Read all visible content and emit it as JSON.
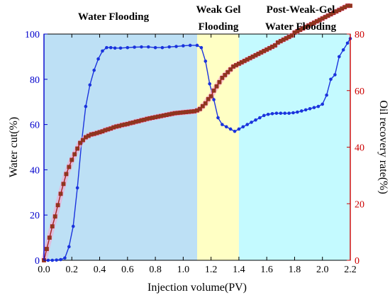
{
  "chart_data": {
    "type": "line",
    "phases": [
      {
        "label": "Water Flooding",
        "lines": [
          "Water Flooding"
        ],
        "x_range": [
          0.0,
          1.1
        ],
        "color": "#bde0f5"
      },
      {
        "label": "Weak Gel Flooding",
        "lines": [
          "Weak Gel",
          "Flooding"
        ],
        "x_range": [
          1.1,
          1.4
        ],
        "color": "#ffffc4"
      },
      {
        "label": "Post-Weak-Gel Water Flooding",
        "lines": [
          "Post-Weak-Gel",
          "Water Flooding"
        ],
        "x_range": [
          1.4,
          2.2
        ],
        "color": "#c4faff"
      }
    ],
    "xlabel": "Injection volume(PV)",
    "ylabel_left": "Water cut(%)",
    "ylabel_right": "Oil recovery rate(%)",
    "xlim": [
      0.0,
      2.2
    ],
    "ylim_left": [
      0,
      100
    ],
    "ylim_right": [
      0,
      80
    ],
    "x_ticks": [
      "0.0",
      "0.2",
      "0.4",
      "0.6",
      "0.8",
      "1.0",
      "1.2",
      "1.4",
      "1.6",
      "1.8",
      "2.0",
      "2.2"
    ],
    "y_left_ticks": [
      "0",
      "20",
      "40",
      "60",
      "80",
      "100"
    ],
    "y_right_ticks": [
      "0",
      "20",
      "40",
      "60",
      "80"
    ],
    "left_color": "#0000cc",
    "right_color": "#cc0000",
    "series": [
      {
        "axis": "left",
        "marker": "circle",
        "color": "#1a33dd",
        "x": [
          0.0,
          0.03,
          0.06,
          0.09,
          0.12,
          0.15,
          0.18,
          0.21,
          0.24,
          0.27,
          0.3,
          0.33,
          0.36,
          0.39,
          0.42,
          0.45,
          0.48,
          0.51,
          0.55,
          0.6,
          0.65,
          0.7,
          0.75,
          0.8,
          0.85,
          0.9,
          0.95,
          1.0,
          1.05,
          1.1,
          1.13,
          1.16,
          1.19,
          1.22,
          1.25,
          1.28,
          1.31,
          1.34,
          1.37,
          1.4,
          1.43,
          1.46,
          1.49,
          1.52,
          1.55,
          1.58,
          1.61,
          1.64,
          1.67,
          1.7,
          1.73,
          1.76,
          1.79,
          1.82,
          1.85,
          1.88,
          1.91,
          1.94,
          1.97,
          2.0,
          2.03,
          2.06,
          2.09,
          2.12,
          2.15,
          2.18,
          2.2
        ],
        "values": [
          0,
          0,
          0,
          0.1,
          0.3,
          1,
          6,
          15,
          32,
          52,
          68,
          77.5,
          84,
          89,
          92.5,
          94,
          94,
          93.8,
          93.8,
          94,
          94.2,
          94.3,
          94.3,
          94,
          94,
          94.3,
          94.5,
          94.8,
          95,
          95,
          94,
          88,
          78,
          71,
          63,
          60,
          59,
          58,
          57,
          58,
          59,
          60,
          61,
          62,
          63,
          64,
          64.5,
          64.8,
          65,
          65,
          65,
          65,
          65.2,
          65.5,
          66,
          66.5,
          67,
          67.5,
          68,
          69,
          73,
          80,
          82,
          90,
          93,
          96,
          98
        ]
      },
      {
        "axis": "right",
        "marker": "square",
        "color": "#aa1f1f",
        "x": [
          0.0,
          0.02,
          0.04,
          0.06,
          0.08,
          0.1,
          0.12,
          0.14,
          0.16,
          0.18,
          0.2,
          0.22,
          0.24,
          0.26,
          0.28,
          0.3,
          0.32,
          0.34,
          0.36,
          0.38,
          0.4,
          0.42,
          0.44,
          0.46,
          0.48,
          0.5,
          0.52,
          0.54,
          0.56,
          0.58,
          0.6,
          0.62,
          0.64,
          0.66,
          0.68,
          0.7,
          0.72,
          0.74,
          0.76,
          0.78,
          0.8,
          0.82,
          0.84,
          0.86,
          0.88,
          0.9,
          0.92,
          0.94,
          0.96,
          0.98,
          1.0,
          1.02,
          1.04,
          1.06,
          1.08,
          1.1,
          1.12,
          1.14,
          1.16,
          1.18,
          1.2,
          1.22,
          1.24,
          1.26,
          1.28,
          1.3,
          1.32,
          1.34,
          1.36,
          1.38,
          1.4,
          1.42,
          1.44,
          1.46,
          1.48,
          1.5,
          1.52,
          1.54,
          1.56,
          1.58,
          1.6,
          1.62,
          1.64,
          1.66,
          1.68,
          1.7,
          1.72,
          1.74,
          1.76,
          1.78,
          1.8,
          1.82,
          1.84,
          1.86,
          1.88,
          1.9,
          1.92,
          1.94,
          1.96,
          1.98,
          2.0,
          2.02,
          2.04,
          2.06,
          2.08,
          2.1,
          2.12,
          2.14,
          2.16,
          2.18,
          2.2
        ],
        "values": [
          0,
          4,
          8,
          12,
          15.5,
          19.5,
          23.5,
          27,
          30.5,
          33,
          35.5,
          37.5,
          39.5,
          41.5,
          42.5,
          43.5,
          44,
          44.5,
          44.7,
          45,
          45.3,
          45.6,
          46,
          46.3,
          46.6,
          47,
          47.3,
          47.5,
          47.8,
          48,
          48.2,
          48.5,
          48.7,
          49,
          49.2,
          49.5,
          49.7,
          50,
          50.2,
          50.4,
          50.6,
          50.8,
          51,
          51.2,
          51.4,
          51.6,
          51.8,
          52,
          52.1,
          52.2,
          52.3,
          52.4,
          52.5,
          52.6,
          52.7,
          53,
          53.5,
          54.5,
          55.5,
          57,
          58,
          60,
          61.5,
          63,
          64.5,
          65.5,
          66.5,
          67.5,
          68.5,
          69,
          69.5,
          70,
          70.5,
          71,
          71.5,
          72,
          72.5,
          73,
          73.5,
          74,
          74.5,
          75,
          75.5,
          76,
          77,
          77.5,
          78,
          78.5,
          79,
          79.5,
          80.5,
          81,
          81.5,
          82,
          82.5,
          83,
          83.5,
          84,
          84.5,
          85,
          85.5,
          86,
          86.5,
          87,
          87.5,
          88,
          88.5,
          89,
          89.5,
          90,
          90
        ]
      }
    ]
  }
}
